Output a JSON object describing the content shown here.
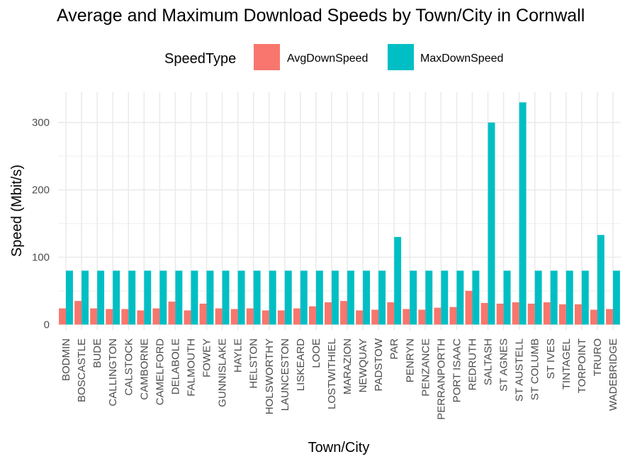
{
  "chart_data": {
    "type": "bar",
    "title": "Average and Maximum Download Speeds by Town/City in Cornwall",
    "xlabel": "Town/City",
    "ylabel": "Speed (Mbit/s)",
    "ylim": [
      -8,
      345
    ],
    "yticks": [
      0,
      100,
      200,
      300
    ],
    "grid": true,
    "legend": {
      "title": "SpeedType",
      "position": "top"
    },
    "categories": [
      "BODMIN",
      "BOSCASTLE",
      "BUDE",
      "CALLINGTON",
      "CALSTOCK",
      "CAMBORNE",
      "CAMELFORD",
      "DELABOLE",
      "FALMOUTH",
      "FOWEY",
      "GUNNISLAKE",
      "HAYLE",
      "HELSTON",
      "HOLSWORTHY",
      "LAUNCESTON",
      "LISKEARD",
      "LOOE",
      "LOSTWITHIEL",
      "MARAZION",
      "NEWQUAY",
      "PADSTOW",
      "PAR",
      "PENRYN",
      "PENZANCE",
      "PERRANPORTH",
      "PORT ISAAC",
      "REDRUTH",
      "SALTASH",
      "ST AGNES",
      "ST AUSTELL",
      "ST COLUMB",
      "ST IVES",
      "TINTAGEL",
      "TORPOINT",
      "TRURO",
      "WADEBRIDGE"
    ],
    "series": [
      {
        "name": "AvgDownSpeed",
        "color": "#F8766D",
        "values": [
          24,
          35,
          24,
          23,
          23,
          21,
          24,
          34,
          21,
          31,
          24,
          23,
          24,
          21,
          21,
          24,
          27,
          33,
          35,
          21,
          22,
          33,
          23,
          22,
          25,
          26,
          50,
          32,
          31,
          33,
          31,
          33,
          30,
          30,
          22,
          23
        ]
      },
      {
        "name": "MaxDownSpeed",
        "color": "#00BFC4",
        "values": [
          80,
          80,
          80,
          80,
          80,
          80,
          80,
          80,
          80,
          80,
          80,
          80,
          80,
          80,
          80,
          80,
          80,
          80,
          80,
          80,
          80,
          130,
          80,
          80,
          80,
          80,
          80,
          300,
          80,
          330,
          80,
          80,
          80,
          80,
          133,
          80
        ]
      }
    ]
  }
}
